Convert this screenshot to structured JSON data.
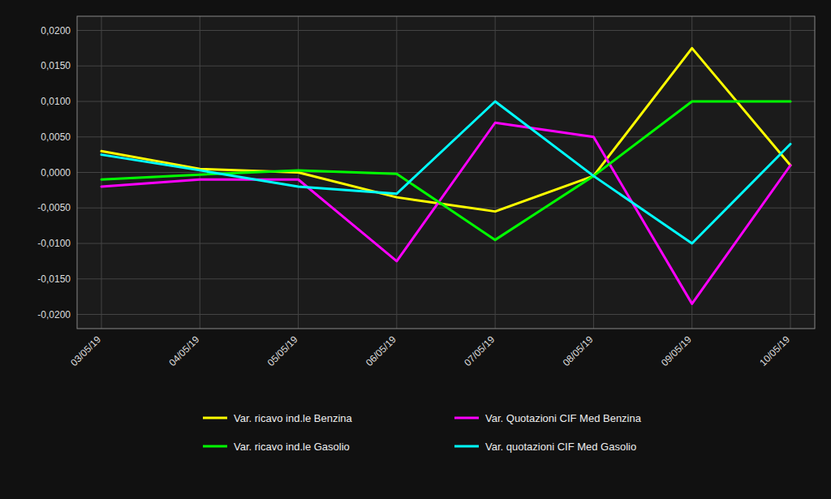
{
  "chart_data": {
    "type": "line",
    "categories": [
      "03/05/19",
      "04/05/19",
      "05/05/19",
      "06/05/19",
      "07/05/19",
      "08/05/19",
      "09/05/19",
      "10/05/19"
    ],
    "series": [
      {
        "name": "Var. ricavo ind.le Benzina",
        "color": "#FFFF00",
        "values": [
          0.003,
          0.0005,
          0.0,
          -0.0035,
          -0.0055,
          -0.0005,
          0.0175,
          0.001
        ]
      },
      {
        "name": "Var. Quotazioni CIF Med Benzina",
        "color": "#FF00FF",
        "values": [
          -0.002,
          -0.001,
          -0.001,
          -0.0125,
          0.007,
          0.005,
          -0.0185,
          0.001
        ]
      },
      {
        "name": "Var. ricavo ind.le Gasolio",
        "color": "#00FF00",
        "values": [
          -0.001,
          -0.0003,
          0.0003,
          -0.0002,
          -0.0095,
          -0.0005,
          0.01,
          0.01
        ]
      },
      {
        "name": "Var. quotazioni CIF Med Gasolio",
        "color": "#00FFFF",
        "values": [
          0.0025,
          0.0003,
          -0.002,
          -0.003,
          0.01,
          -0.0005,
          -0.01,
          0.004
        ]
      }
    ],
    "ylim": [
      -0.022,
      0.022
    ],
    "yticks": [
      {
        "value": -0.02,
        "label": "-0,0200"
      },
      {
        "value": -0.015,
        "label": "-0,0150"
      },
      {
        "value": -0.01,
        "label": "-0,0100"
      },
      {
        "value": -0.005,
        "label": "-0,0050"
      },
      {
        "value": 0.0,
        "label": "0,0000"
      },
      {
        "value": 0.005,
        "label": "0,0050"
      },
      {
        "value": 0.01,
        "label": "0,0100"
      },
      {
        "value": 0.015,
        "label": "0,0150"
      },
      {
        "value": 0.02,
        "label": "0,0200"
      }
    ],
    "grid": true,
    "legend": "bottom"
  }
}
